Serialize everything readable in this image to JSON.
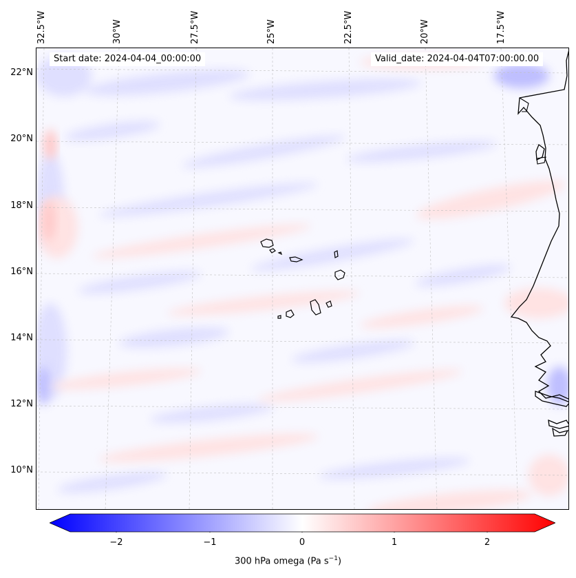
{
  "map": {
    "start_date": "Start date: 2024-04-04_00:00:00",
    "valid_date": "Valid_date: 2024-04-04T07:00:00.00",
    "lon_labels": [
      "32.5°W",
      "30°W",
      "27.5°W",
      "25°W",
      "22.5°W",
      "20°W",
      "17.5°W"
    ],
    "lat_labels": [
      "22°N",
      "20°N",
      "18°N",
      "16°N",
      "14°N",
      "12°N",
      "10°N"
    ],
    "features": [
      "cape-verde-islands",
      "west-africa-coastline"
    ]
  },
  "colorbar": {
    "ticks": [
      "−2",
      "−1",
      "0",
      "1",
      "2"
    ],
    "label": "300 hPa omega (Pa s",
    "label_sup": "−1",
    "label_close": ")",
    "colors": {
      "min": "#0000ff",
      "mid": "#ffffff",
      "max": "#ff0000"
    }
  }
}
